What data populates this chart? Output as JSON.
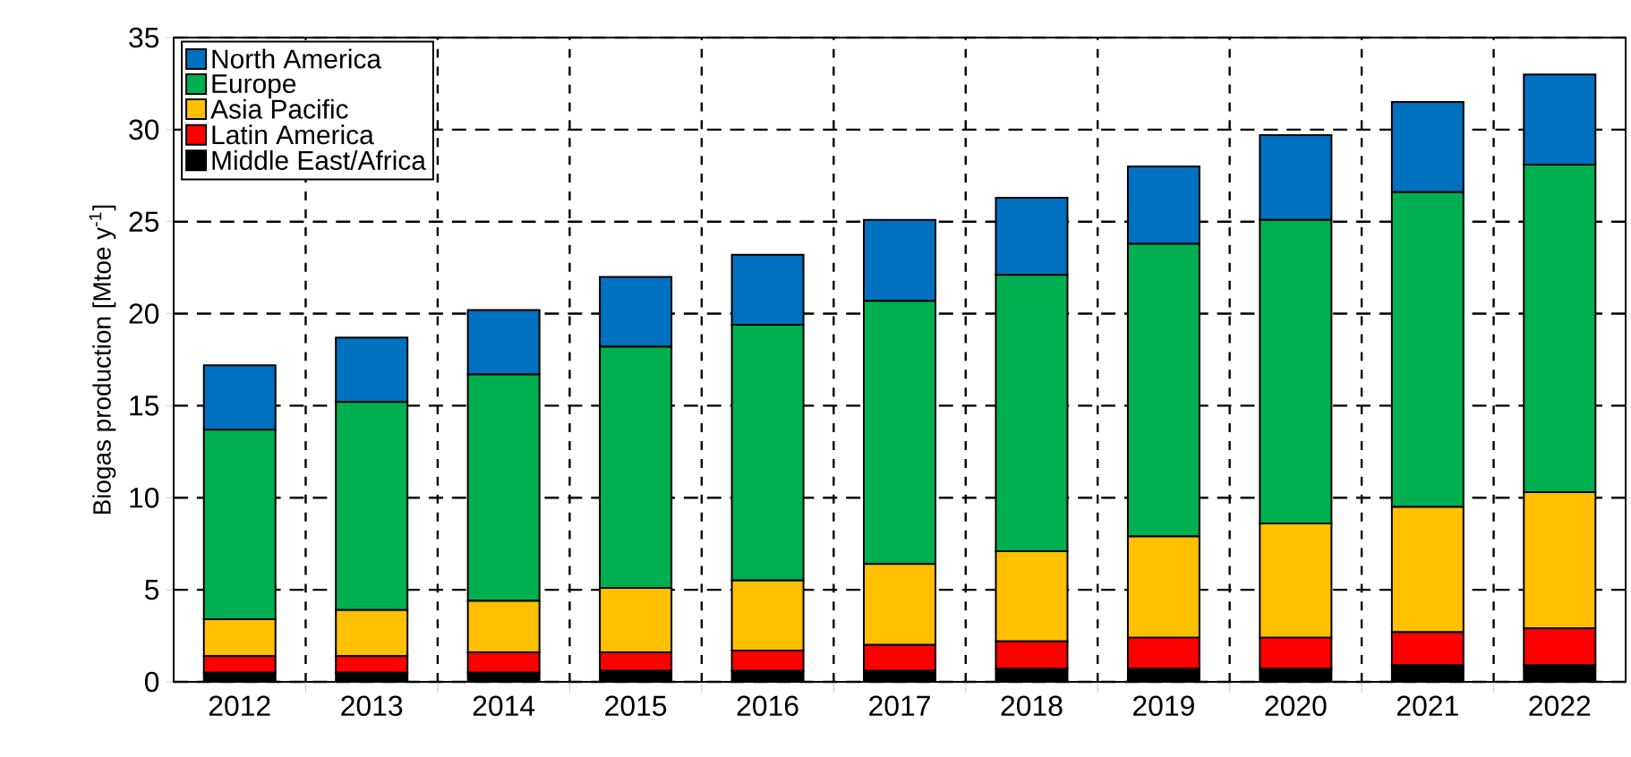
{
  "chart_data": {
    "type": "bar",
    "stacked": true,
    "ylabel": "Biogas production [Mtoe y$^{-1}$]",
    "categories": [
      "2012",
      "2013",
      "2014",
      "2015",
      "2016",
      "2017",
      "2018",
      "2019",
      "2020",
      "2021",
      "2022"
    ],
    "series": [
      {
        "name": "Middle East/Africa",
        "color": "#000000",
        "values": [
          0.5,
          0.5,
          0.5,
          0.6,
          0.6,
          0.6,
          0.7,
          0.7,
          0.7,
          0.9,
          0.9
        ]
      },
      {
        "name": "Latin America",
        "color": "#ff0000",
        "values": [
          0.9,
          0.9,
          1.1,
          1.0,
          1.1,
          1.4,
          1.5,
          1.7,
          1.7,
          1.8,
          2.0
        ]
      },
      {
        "name": "Asia Pacific",
        "color": "#ffc000",
        "values": [
          2.0,
          2.5,
          2.8,
          3.5,
          3.8,
          4.4,
          4.9,
          5.5,
          6.2,
          6.8,
          7.4
        ]
      },
      {
        "name": "Europe",
        "color": "#00b050",
        "values": [
          10.3,
          11.3,
          12.3,
          13.1,
          13.9,
          14.3,
          15.0,
          15.9,
          16.5,
          17.1,
          17.8
        ]
      },
      {
        "name": "North America",
        "color": "#0070c0",
        "values": [
          3.5,
          3.5,
          3.5,
          3.8,
          3.8,
          4.4,
          4.2,
          4.2,
          4.6,
          4.9,
          4.9
        ]
      }
    ],
    "ylim": [
      0,
      35
    ],
    "yticks": [
      0,
      5,
      10,
      15,
      20,
      25,
      30,
      35
    ],
    "grid": true,
    "legend": "top left"
  }
}
